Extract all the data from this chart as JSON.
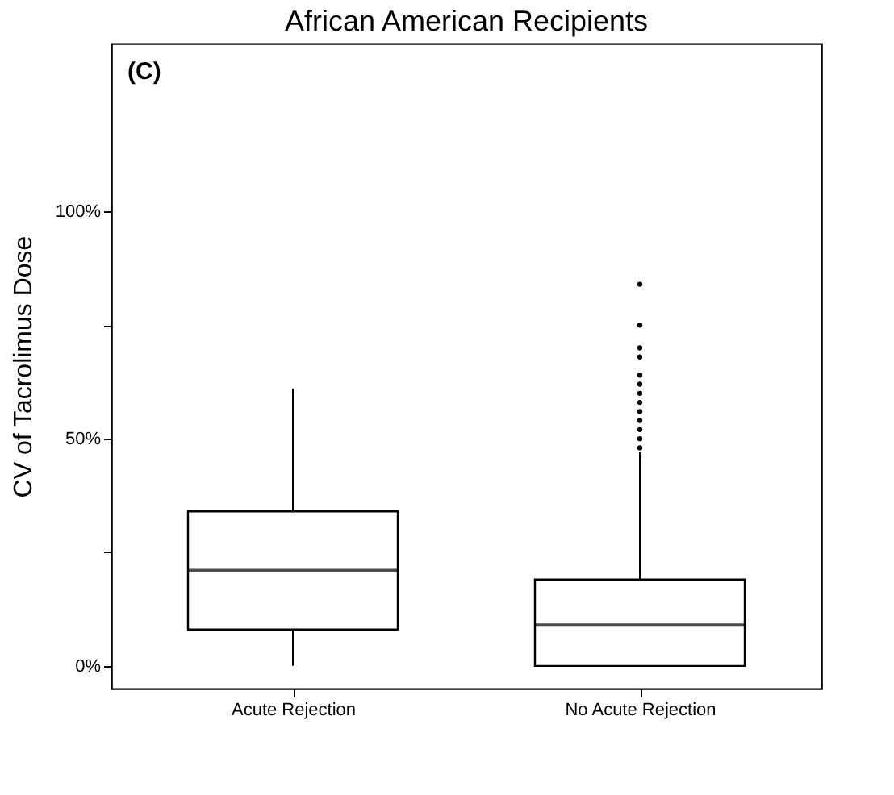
{
  "chart_data": {
    "type": "box",
    "title": "African American Recipients",
    "ylabel": "CV of Tacrolimus Dose",
    "categories": [
      "Acute Rejection",
      "No Acute Rejection"
    ],
    "boxes": [
      {
        "low": 0,
        "q1": 8,
        "median": 21,
        "q3": 34,
        "high": 61
      },
      {
        "low": 0,
        "q1": 0,
        "median": 9,
        "q3": 19,
        "high": 47,
        "outliers": [
          48,
          50,
          52,
          54,
          56,
          58,
          60,
          62,
          64,
          68,
          70,
          75,
          84
        ]
      }
    ],
    "color": "#000000",
    "ylim": [
      -5,
      137
    ],
    "yticks": [
      {
        "value": 0,
        "label": "0%"
      },
      {
        "value": 25,
        "label": null
      },
      {
        "value": 50,
        "label": "50%"
      },
      {
        "value": 75,
        "label": null
      },
      {
        "value": 100,
        "label": "100%"
      }
    ],
    "annotations": [
      "(C)"
    ],
    "grid": false
  }
}
